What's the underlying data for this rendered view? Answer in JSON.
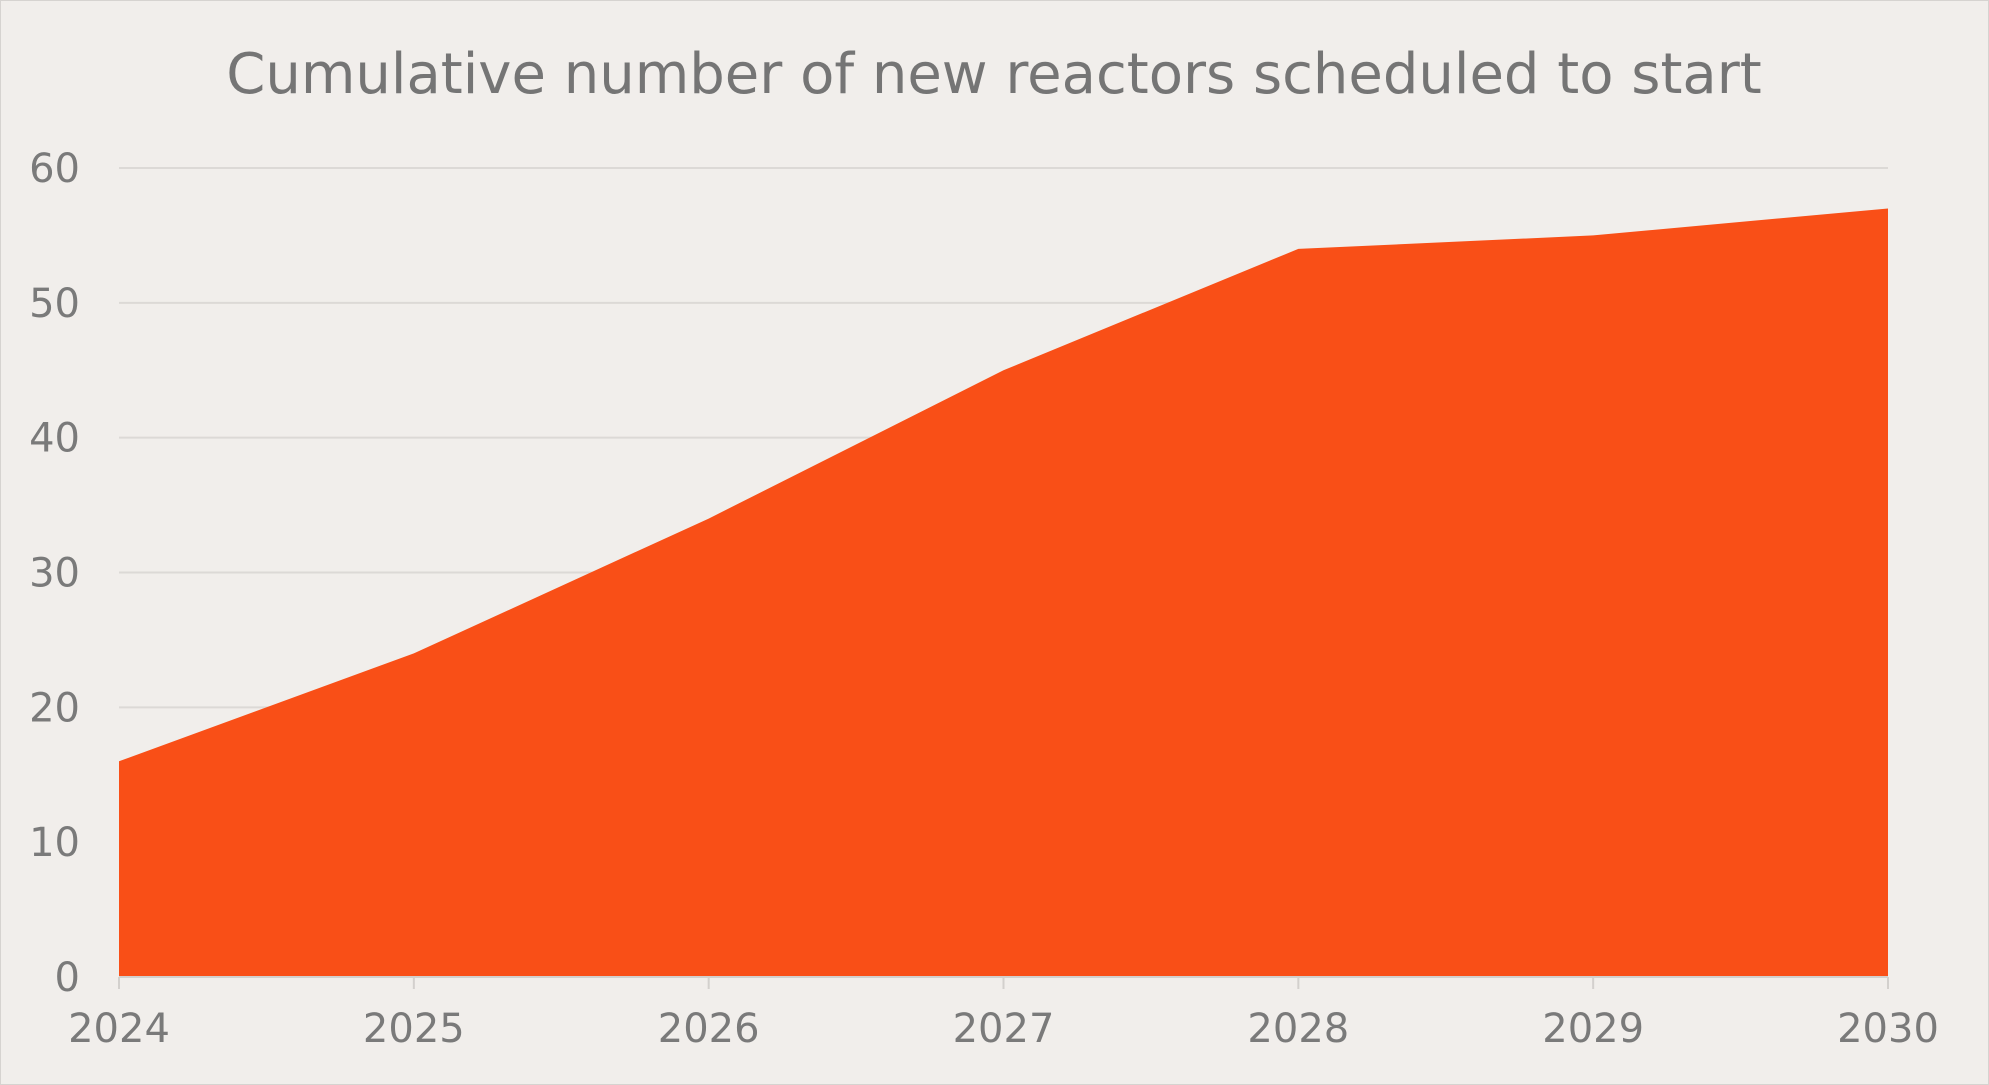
{
  "chart_data": {
    "type": "area",
    "title": "Cumulative number of new reactors scheduled to start",
    "xlabel": "",
    "ylabel": "",
    "categories": [
      "2024",
      "2025",
      "2026",
      "2027",
      "2028",
      "2029",
      "2030"
    ],
    "values": [
      16,
      24,
      34,
      45,
      54,
      55,
      57
    ],
    "ylim": [
      0,
      60
    ],
    "yticks": [
      "0",
      "10",
      "20",
      "30",
      "40",
      "50",
      "60"
    ],
    "grid": true,
    "legend": "none",
    "colors": {
      "area": "#f94f17",
      "background": "#f1eeeb",
      "grid": "#dcd9d6",
      "text": "#757575"
    }
  }
}
